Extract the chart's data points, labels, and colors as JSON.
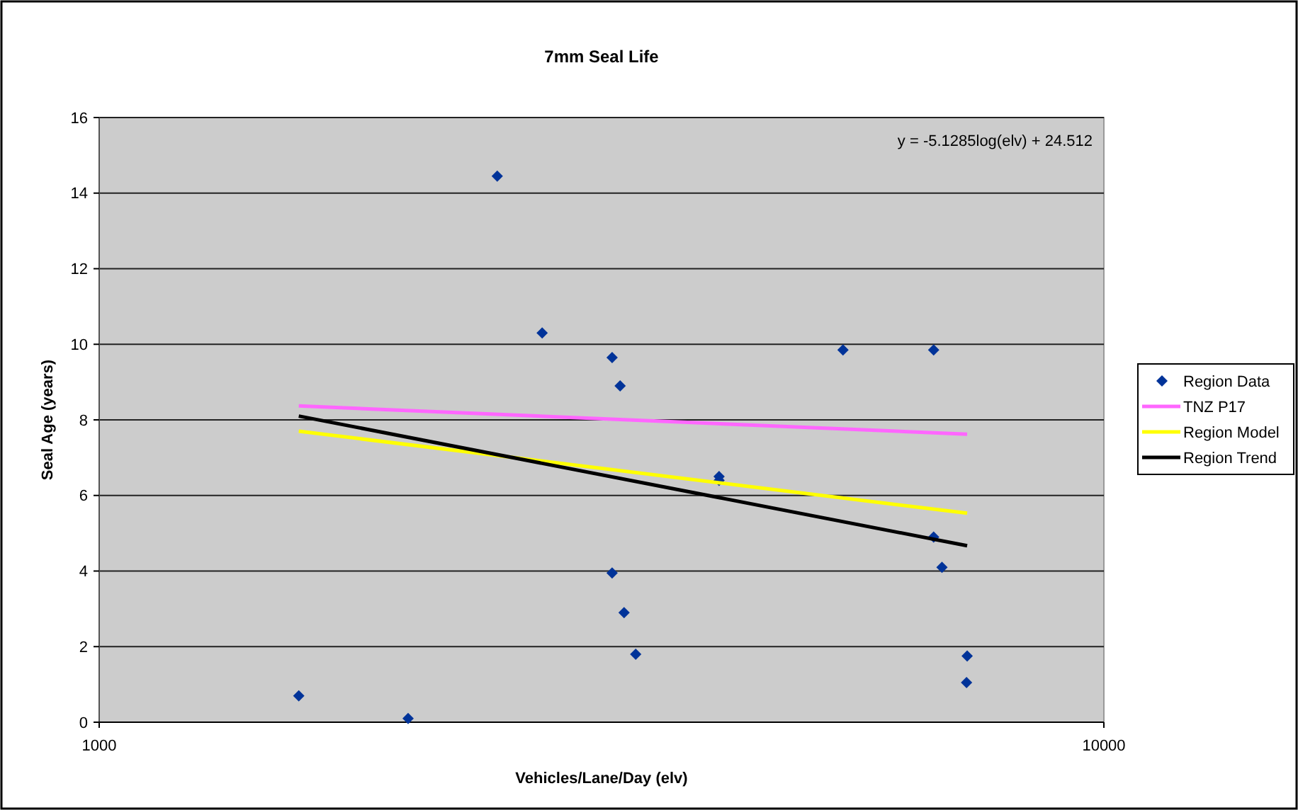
{
  "chart_data": {
    "type": "scatter",
    "title": "7mm Seal Life",
    "xlabel": "Vehicles/Lane/Day (elv)",
    "ylabel": "Seal Age (years)",
    "log": "x",
    "xlim": [
      1000,
      10000
    ],
    "xticks": [
      1000,
      10000
    ],
    "ylim": [
      0,
      16
    ],
    "yticks": [
      0,
      2,
      4,
      6,
      8,
      10,
      12,
      14,
      16
    ],
    "grid": "y",
    "legend": "right",
    "annotations": [
      "y = -5.1285log(elv) + 24.512"
    ],
    "series": [
      {
        "name": "Region Data",
        "marker": "diamond",
        "color": "#003399",
        "x": [
          1580,
          2030,
          2490,
          2760,
          3240,
          3300,
          3240,
          3330,
          3420,
          4140,
          4140,
          5500,
          6770,
          6770,
          6900,
          7310,
          7300
        ],
        "values": [
          0.7,
          0.1,
          14.45,
          10.3,
          9.65,
          8.9,
          3.95,
          2.9,
          1.8,
          6.5,
          6.4,
          9.85,
          9.85,
          4.9,
          4.1,
          1.75,
          1.05
        ]
      },
      {
        "name": "TNZ P17",
        "type": "line",
        "marker": "none",
        "color": "#ff66ff",
        "x": [
          1580,
          7310
        ],
        "values": [
          8.37,
          7.62
        ]
      },
      {
        "name": "Region Model",
        "type": "line",
        "marker": "none",
        "color": "#ffff00",
        "x": [
          1580,
          7310
        ],
        "values": [
          7.7,
          5.53
        ]
      },
      {
        "name": "Region Trend",
        "type": "line",
        "marker": "none",
        "color": "#000000",
        "x": [
          1580,
          7310
        ],
        "values": [
          8.1,
          4.67
        ]
      }
    ]
  }
}
